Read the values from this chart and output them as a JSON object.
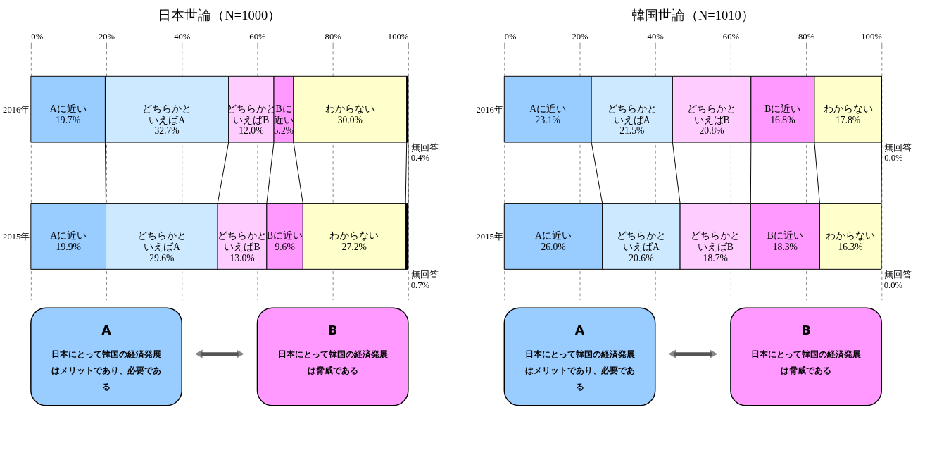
{
  "chart_data": [
    {
      "type": "bar",
      "orientation": "horizontal",
      "stacked": true,
      "title": "日本世論（N=1000）",
      "categories": [
        "2016年",
        "2015年"
      ],
      "xlim": [
        0,
        100
      ],
      "xticks": [
        {
          "value": 0,
          "label": "0%"
        },
        {
          "value": 20,
          "label": "20%"
        },
        {
          "value": 40,
          "label": "40%"
        },
        {
          "value": 60,
          "label": "60%"
        },
        {
          "value": 80,
          "label": "80%"
        },
        {
          "value": 100,
          "label": "100%"
        }
      ],
      "grid": "x",
      "legend": false,
      "series": [
        {
          "name": "Aに近い",
          "color": "#99ccff",
          "values": [
            19.7,
            19.9
          ],
          "value_labels": [
            "19.7%",
            "19.9%"
          ]
        },
        {
          "name": "どちらかといえばA",
          "color": "#cce9ff",
          "values": [
            32.7,
            29.6
          ],
          "value_labels": [
            "32.7%",
            "29.6%"
          ]
        },
        {
          "name": "どちらかといえばB",
          "color": "#ffccff",
          "values": [
            12.0,
            13.0
          ],
          "value_labels": [
            "12.0%",
            "13.0%"
          ]
        },
        {
          "name": "Bに近い",
          "color": "#ff99ff",
          "values": [
            5.2,
            9.6
          ],
          "value_labels": [
            "5.2%",
            "9.6%"
          ]
        },
        {
          "name": "わからない",
          "color": "#ffffcc",
          "values": [
            30.0,
            27.2
          ],
          "value_labels": [
            "30.0%",
            "27.2%"
          ]
        },
        {
          "name": "無回答",
          "color": "#000000",
          "values": [
            0.4,
            0.7
          ],
          "value_labels": [
            "0.4%",
            "0.7%"
          ]
        }
      ],
      "annotations": [
        "A",
        "日本にとって韓国の経済発展はメリットであり、必要である",
        "B",
        "日本にとって韓国の経済発展は脅威である"
      ]
    },
    {
      "type": "bar",
      "orientation": "horizontal",
      "stacked": true,
      "title": "韓国世論（N=1010）",
      "categories": [
        "2016年",
        "2015年"
      ],
      "xlim": [
        0,
        100
      ],
      "xticks": [
        {
          "value": 0,
          "label": "0%"
        },
        {
          "value": 20,
          "label": "20%"
        },
        {
          "value": 40,
          "label": "40%"
        },
        {
          "value": 60,
          "label": "60%"
        },
        {
          "value": 80,
          "label": "80%"
        },
        {
          "value": 100,
          "label": "100%"
        }
      ],
      "grid": "x",
      "legend": false,
      "series": [
        {
          "name": "Aに近い",
          "color": "#99ccff",
          "values": [
            23.1,
            26.0
          ],
          "value_labels": [
            "23.1%",
            "26.0%"
          ]
        },
        {
          "name": "どちらかといえばA",
          "color": "#cce9ff",
          "values": [
            21.5,
            20.6
          ],
          "value_labels": [
            "21.5%",
            "20.6%"
          ]
        },
        {
          "name": "どちらかといえばB",
          "color": "#ffccff",
          "values": [
            20.8,
            18.7
          ],
          "value_labels": [
            "20.8%",
            "18.7%"
          ]
        },
        {
          "name": "Bに近い",
          "color": "#ff99ff",
          "values": [
            16.8,
            18.3
          ],
          "value_labels": [
            "16.8%",
            "18.3%"
          ]
        },
        {
          "name": "わからない",
          "color": "#ffffcc",
          "values": [
            17.8,
            16.3
          ],
          "value_labels": [
            "17.8%",
            "16.3%"
          ]
        },
        {
          "name": "無回答",
          "color": "#000000",
          "values": [
            0.0,
            0.0
          ],
          "value_labels": [
            "0.0%",
            "0.0%"
          ]
        }
      ],
      "annotations": [
        "A",
        "日本にとって韓国の経済発展はメリットであり、必要である",
        "B",
        "日本にとって韓国の経済発展は脅威である"
      ]
    }
  ]
}
